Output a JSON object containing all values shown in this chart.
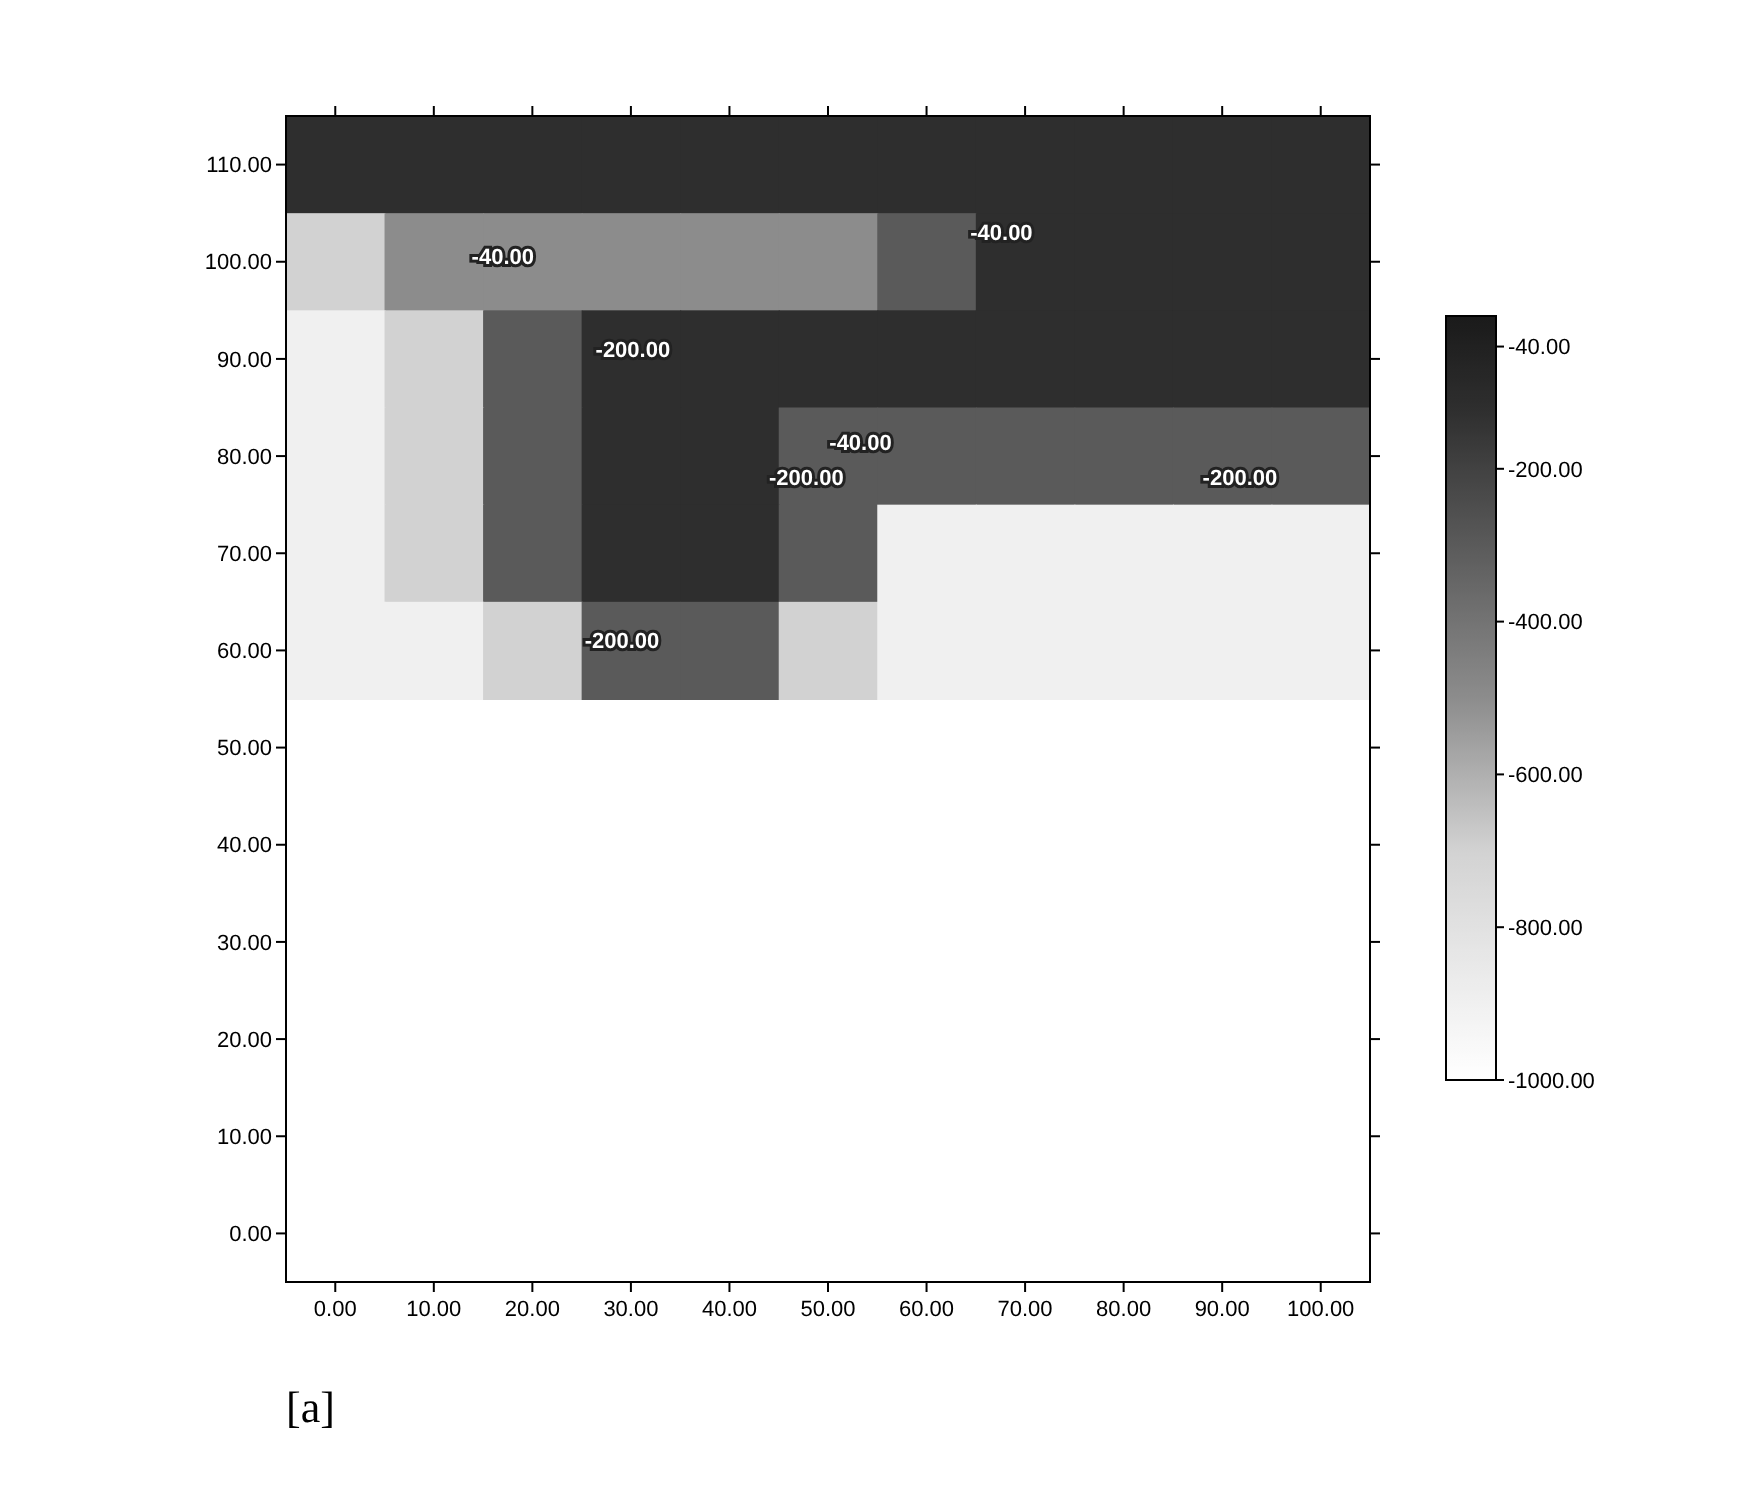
{
  "chart_data": {
    "type": "heatmap",
    "categories": [
      "0.00",
      "10.00",
      "20.00",
      "30.00",
      "40.00",
      "50.00",
      "60.00",
      "70.00",
      "80.00",
      "90.00",
      "100.00"
    ],
    "y_categories": [
      "110.00",
      "100.00",
      "90.00",
      "80.00",
      "70.00",
      "60.00",
      "50.00",
      "40.00",
      "30.00",
      "20.00",
      "10.00",
      "0.00"
    ],
    "cells": [
      [
        -120,
        -120,
        -120,
        -120,
        -120,
        -120,
        -120,
        -120,
        -120,
        -120,
        -120
      ],
      [
        -700,
        -500,
        -500,
        -500,
        -500,
        -500,
        -300,
        -120,
        -120,
        -120,
        -120
      ],
      [
        -900,
        -700,
        -300,
        -120,
        -120,
        -120,
        -120,
        -120,
        -120,
        -120,
        -120
      ],
      [
        -900,
        -700,
        -300,
        -120,
        -120,
        -300,
        -300,
        -300,
        -300,
        -300,
        -300
      ],
      [
        -900,
        -700,
        -300,
        -120,
        -120,
        -300,
        -900,
        -900,
        -900,
        -900,
        -900
      ],
      [
        -900,
        -900,
        -700,
        -300,
        -300,
        -700,
        -900,
        -900,
        -900,
        -900,
        -900
      ],
      [
        null,
        null,
        null,
        null,
        null,
        null,
        null,
        null,
        null,
        null,
        null
      ],
      [
        null,
        null,
        null,
        null,
        null,
        null,
        null,
        null,
        null,
        null,
        null
      ],
      [
        null,
        null,
        null,
        null,
        null,
        null,
        null,
        null,
        null,
        null,
        null
      ],
      [
        null,
        null,
        null,
        null,
        null,
        null,
        null,
        null,
        null,
        null,
        null
      ],
      [
        null,
        null,
        null,
        null,
        null,
        null,
        null,
        null,
        null,
        null,
        null
      ],
      [
        null,
        null,
        null,
        null,
        null,
        null,
        null,
        null,
        null,
        null,
        null
      ]
    ],
    "colors": [
      "#ffffff",
      "#d2d2d2",
      "#8c8c8c",
      "#5a5a5a",
      "#2e2e2e",
      "#1a1a1a"
    ],
    "clim": [
      -1000,
      0
    ],
    "cticks": [
      {
        "value": -40,
        "label": "-40.00"
      },
      {
        "value": -200,
        "label": "-200.00"
      },
      {
        "value": -400,
        "label": "-400.00"
      },
      {
        "value": -600,
        "label": "-600.00"
      },
      {
        "value": -800,
        "label": "-800.00"
      },
      {
        "value": -1000,
        "label": "-1000.00"
      }
    ],
    "annotations": [
      "-40.00",
      "-40.00",
      "-200.00",
      "-40.00",
      "-200.00",
      "-200.00",
      "-200.00",
      "[a]"
    ]
  }
}
